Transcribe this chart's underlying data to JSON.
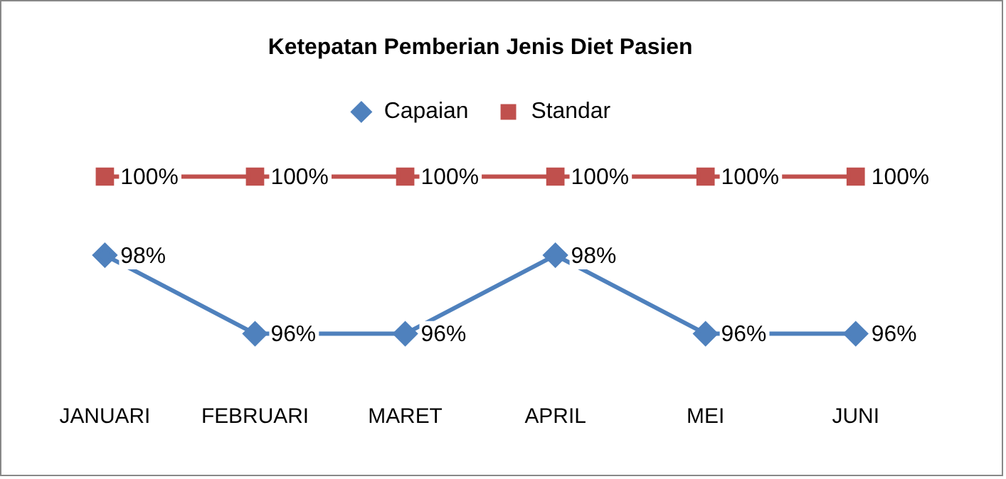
{
  "chart_data": {
    "type": "line",
    "title": "Ketepatan Pemberian Jenis Diet Pasien",
    "categories": [
      "JANUARI",
      "FEBRUARI",
      "MARET",
      "APRIL",
      "MEI",
      "JUNI"
    ],
    "legend": "top",
    "grid": false,
    "tick_labels": "x",
    "line_style": "solid",
    "series": [
      {
        "name": "Capaian",
        "color": "#4f81bd",
        "marker": "diamond",
        "values": [
          98,
          96,
          96,
          98,
          96,
          96
        ],
        "value_labels": [
          "98%",
          "96%",
          "96%",
          "98%",
          "96%",
          "96%"
        ]
      },
      {
        "name": "Standar",
        "color": "#c0504d",
        "marker": "square",
        "values": [
          100,
          100,
          100,
          100,
          100,
          100
        ],
        "value_labels": [
          "100%",
          "100%",
          "100%",
          "100%",
          "100%",
          "100%"
        ]
      }
    ]
  }
}
